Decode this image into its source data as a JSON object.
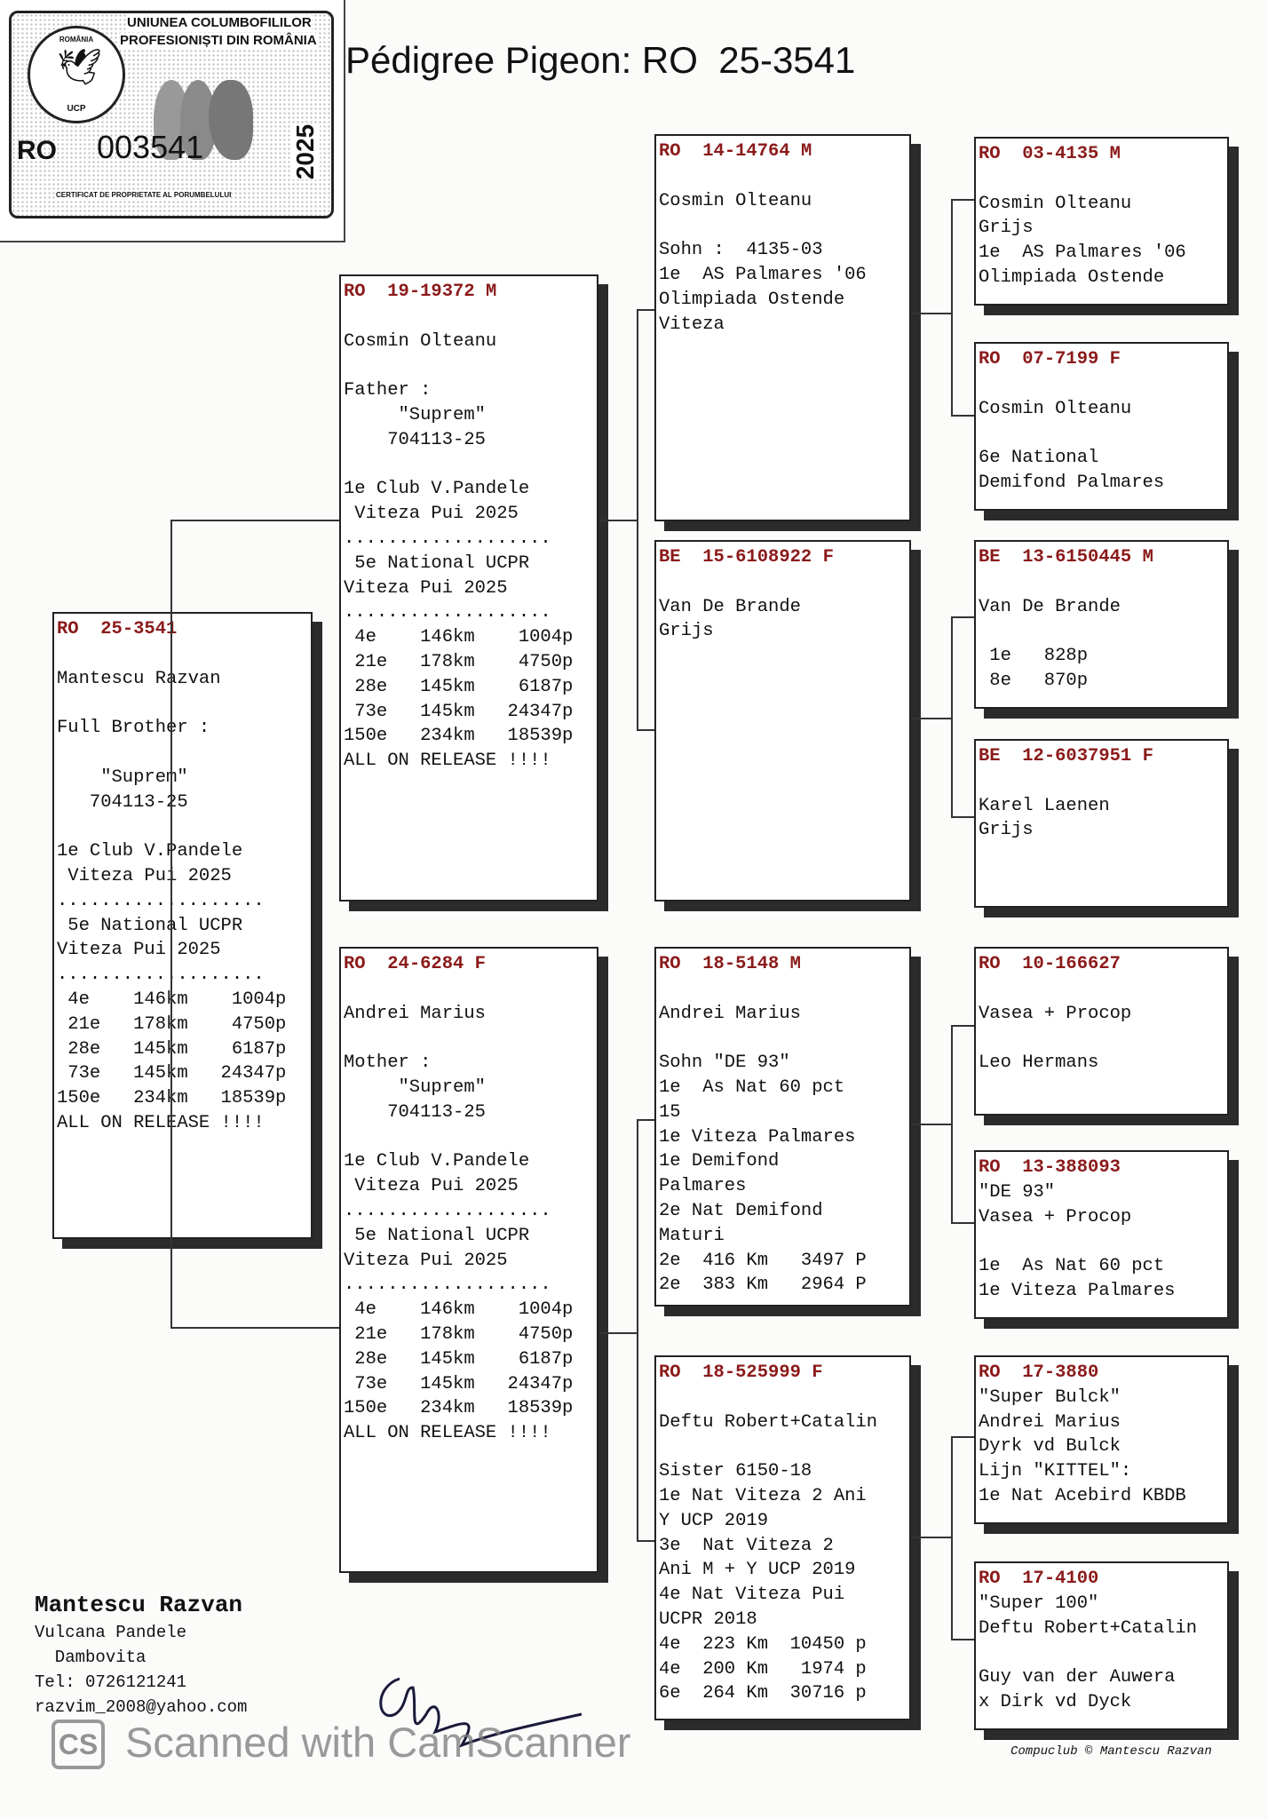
{
  "certificate": {
    "org_line1": "UNIUNEA COLUMBOFILILOR",
    "org_line2": "PROFESIONIȘTI DIN ROMÂNIA",
    "seal_text": "ROMÂNIA",
    "seal_abbr": "UCP",
    "country": "RO",
    "number": "003541",
    "year": "2025",
    "caption": "CERTIFICAT DE PROPRIETATE AL PORUMBELULUI"
  },
  "title": "Pédigree Pigeon: RO  25-3541",
  "colors": {
    "ring_text": "#8b1a1a",
    "shadow": "#2b2b2b"
  },
  "pedigree": {
    "subject": {
      "country": "RO",
      "ring": "25-3541",
      "sex": "",
      "lines": [
        "",
        "Mantescu Razvan",
        "",
        "Full Brother :",
        "",
        "    \"Suprem\"",
        "   704113-25",
        "",
        "1e Club V.Pandele",
        " Viteza Pui 2025",
        "...................",
        " 5e National UCPR",
        "Viteza Pui 2025",
        "...................",
        " 4e    146km    1004p",
        " 21e   178km    4750p",
        " 28e   145km    6187p",
        " 73e   145km   24347p",
        "150e   234km   18539p",
        "ALL ON RELEASE !!!!"
      ]
    },
    "father": {
      "country": "RO",
      "ring": "19-19372",
      "sex": "M",
      "lines": [
        "",
        "Cosmin Olteanu",
        "",
        "Father :",
        "     \"Suprem\"",
        "    704113-25",
        "",
        "1e Club V.Pandele",
        " Viteza Pui 2025",
        "...................",
        " 5e National UCPR",
        "Viteza Pui 2025",
        "...................",
        " 4e    146km    1004p",
        " 21e   178km    4750p",
        " 28e   145km    6187p",
        " 73e   145km   24347p",
        "150e   234km   18539p",
        "ALL ON RELEASE !!!!"
      ]
    },
    "mother": {
      "country": "RO",
      "ring": "24-6284",
      "sex": "F",
      "lines": [
        "",
        "Andrei Marius",
        "",
        "Mother :",
        "     \"Suprem\"",
        "    704113-25",
        "",
        "1e Club V.Pandele",
        " Viteza Pui 2025",
        "...................",
        " 5e National UCPR",
        "Viteza Pui 2025",
        "...................",
        " 4e    146km    1004p",
        " 21e   178km    4750p",
        " 28e   145km    6187p",
        " 73e   145km   24347p",
        "150e   234km   18539p",
        "ALL ON RELEASE !!!!"
      ]
    },
    "grandparents": [
      {
        "country": "RO",
        "ring": "14-14764",
        "sex": "M",
        "lines": [
          "",
          "Cosmin Olteanu",
          "",
          "Sohn :  4135-03",
          "1e  AS Palmares '06",
          "Olimpiada Ostende",
          "Viteza"
        ]
      },
      {
        "country": "BE",
        "ring": "15-6108922",
        "sex": "F",
        "lines": [
          "",
          "Van De Brande",
          "Grijs"
        ]
      },
      {
        "country": "RO",
        "ring": "18-5148",
        "sex": "M",
        "lines": [
          "",
          "Andrei Marius",
          "",
          "Sohn \"DE 93\"",
          "1e  As Nat 60 pct",
          "15",
          "1e Viteza Palmares",
          "1e Demifond",
          "Palmares",
          "2e Nat Demifond",
          "Maturi",
          "2e  416 Km   3497 P",
          "2e  383 Km   2964 P"
        ]
      },
      {
        "country": "RO",
        "ring": "18-525999",
        "sex": "F",
        "lines": [
          "",
          "Deftu Robert+Catalin",
          "",
          "Sister 6150-18",
          "1e Nat Viteza 2 Ani",
          "Y UCP 2019",
          "3e  Nat Viteza 2",
          "Ani M + Y UCP 2019",
          "4e Nat Viteza Pui",
          "UCPR 2018",
          "4e  223 Km  10450 p",
          "4e  200 Km   1974 p",
          "6e  264 Km  30716 p"
        ]
      }
    ],
    "great_grandparents": [
      {
        "country": "RO",
        "ring": "03-4135",
        "sex": "M",
        "lines": [
          "",
          "Cosmin Olteanu",
          "Grijs",
          "1e  AS Palmares '06",
          "Olimpiada Ostende"
        ]
      },
      {
        "country": "RO",
        "ring": "07-7199",
        "sex": "F",
        "lines": [
          "",
          "Cosmin Olteanu",
          "",
          "6e National",
          "Demifond Palmares"
        ]
      },
      {
        "country": "BE",
        "ring": "13-6150445",
        "sex": "M",
        "lines": [
          "",
          "Van De Brande",
          "",
          " 1e   828p",
          " 8e   870p"
        ]
      },
      {
        "country": "BE",
        "ring": "12-6037951",
        "sex": "F",
        "lines": [
          "",
          "Karel Laenen",
          "Grijs"
        ]
      },
      {
        "country": "RO",
        "ring": "10-166627",
        "sex": "",
        "lines": [
          "",
          "Vasea + Procop",
          "",
          "Leo Hermans"
        ]
      },
      {
        "country": "RO",
        "ring": "13-388093",
        "sex": "",
        "lines": [
          "\"DE 93\"",
          "Vasea + Procop",
          "",
          "1e  As Nat 60 pct",
          "1e Viteza Palmares"
        ]
      },
      {
        "country": "RO",
        "ring": "17-3880",
        "sex": "",
        "lines": [
          "\"Super Bulck\"",
          "Andrei Marius",
          "Dyrk vd Bulck",
          "Lijn \"KITTEL\":",
          "1e Nat Acebird KBDB"
        ]
      },
      {
        "country": "RO",
        "ring": "17-4100",
        "sex": "",
        "lines": [
          "\"Super 100\"",
          "Deftu Robert+Catalin",
          "",
          "Guy van der Auwera",
          "x Dirk vd Dyck"
        ]
      }
    ]
  },
  "contact": {
    "name": "Mantescu Razvan",
    "address1": "Vulcana Pandele",
    "address2": "  Dambovita",
    "phone": "Tel: 0726121241",
    "email": "razvim_2008@yahoo.com"
  },
  "footer": "Compuclub © Mantescu Razvan",
  "watermark": {
    "logo": "CS",
    "text": "Scanned with CamScanner"
  }
}
